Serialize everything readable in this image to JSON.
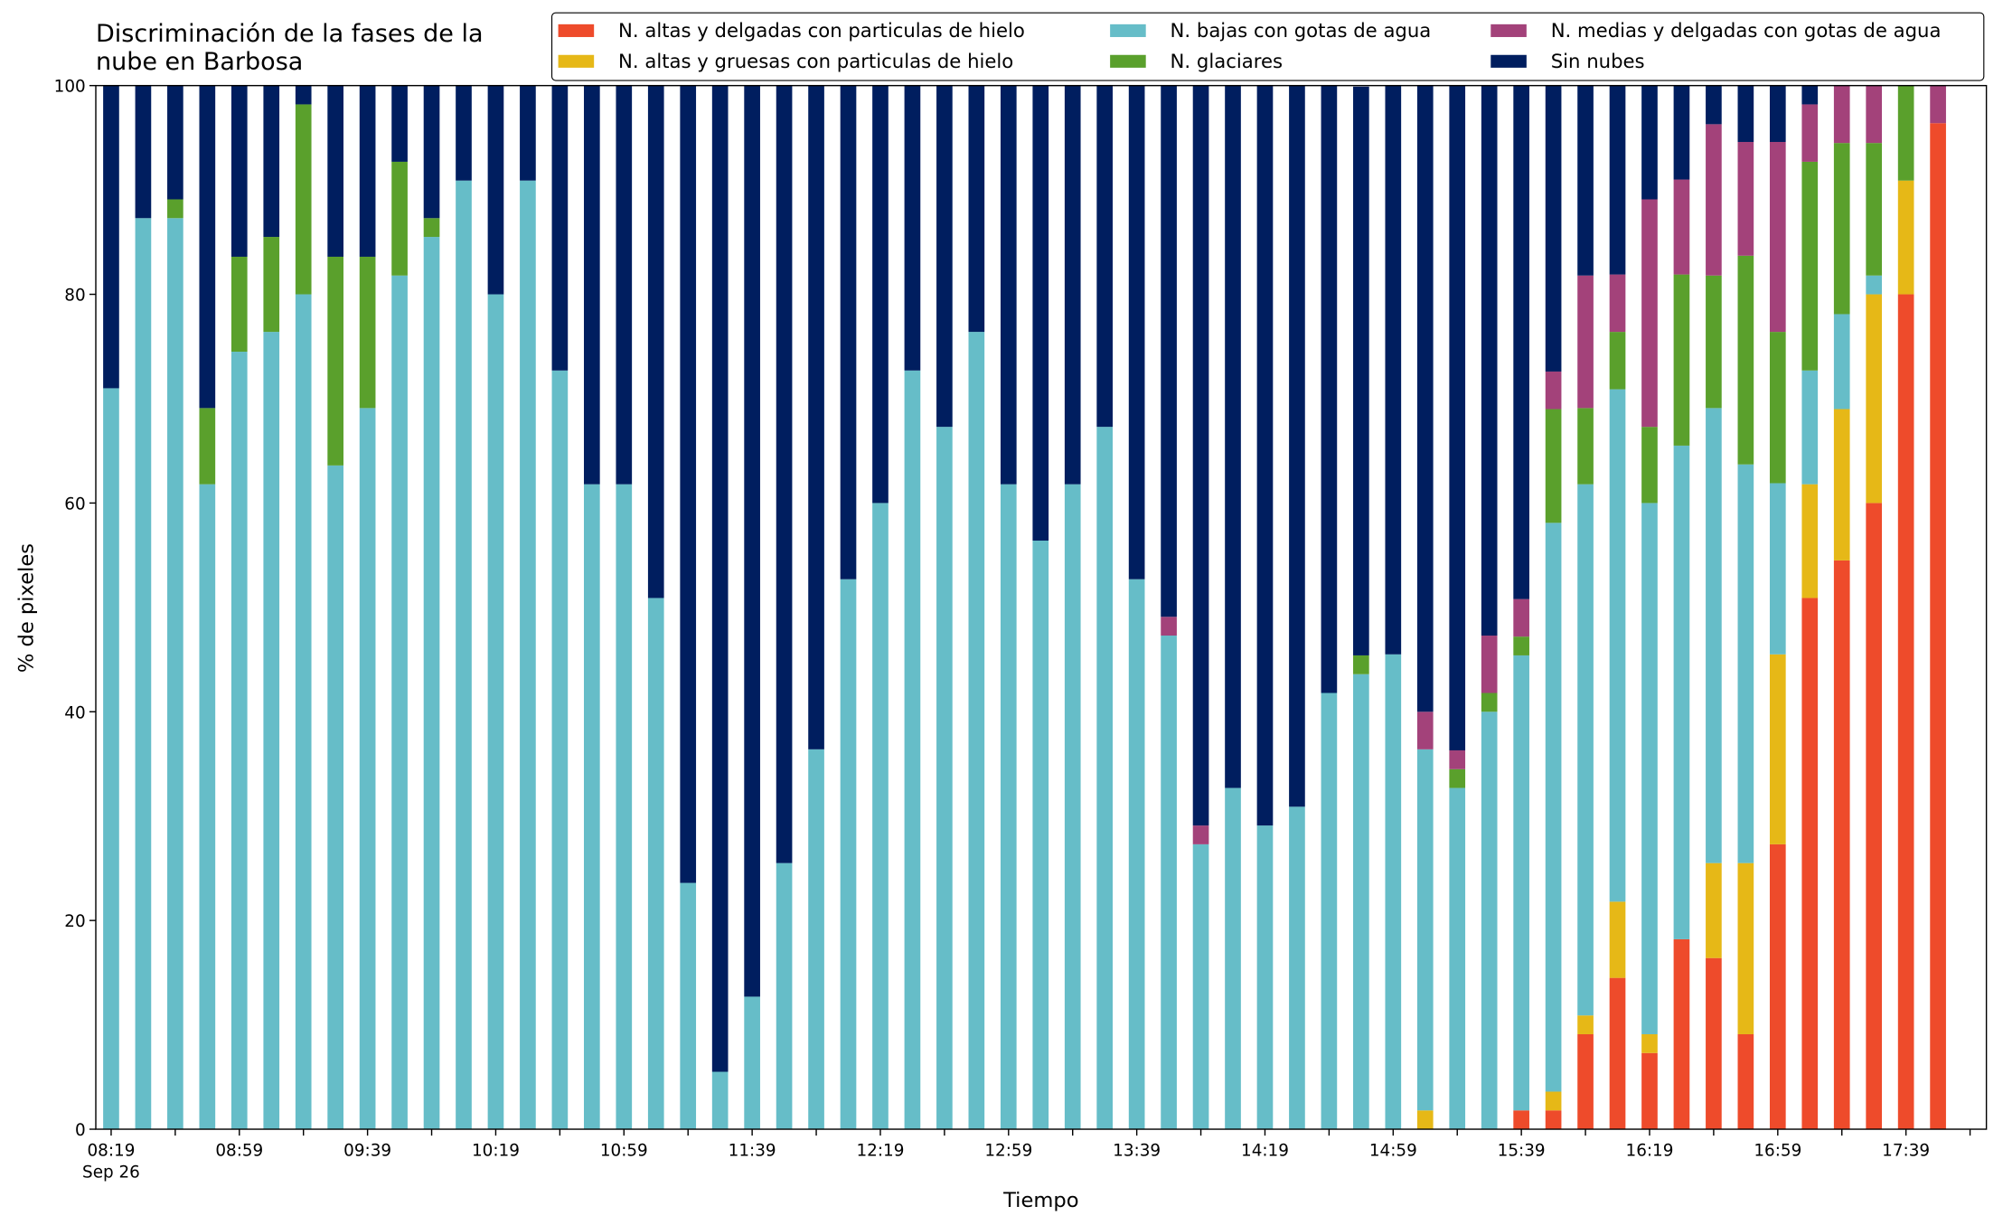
{
  "chart_data": {
    "type": "bar",
    "stacked": true,
    "title": "Discriminación de la fases de la\nnube en Barbosa",
    "xlabel": "Tiempo",
    "ylabel": "% de pixeles",
    "date_label": "Sep 26",
    "categories": [
      "08:19",
      null,
      null,
      null,
      "08:59",
      null,
      null,
      null,
      "09:39",
      null,
      null,
      null,
      "10:19",
      null,
      null,
      null,
      "10:59",
      null,
      null,
      null,
      "11:39",
      null,
      null,
      null,
      "12:19",
      null,
      null,
      null,
      "12:59",
      null,
      null,
      null,
      "13:39",
      null,
      null,
      null,
      "14:19",
      null,
      null,
      null,
      "14:59",
      null,
      null,
      null,
      "15:39",
      null,
      null,
      null,
      "16:19",
      null,
      null,
      null,
      "16:59",
      null,
      null,
      null,
      "17:39",
      null
    ],
    "ylim": [
      0,
      100
    ],
    "yticks": [
      0,
      20,
      40,
      60,
      80,
      100
    ],
    "legend": "upper right",
    "series": [
      {
        "name": "N. altas y delgadas con particulas de hielo",
        "color": "#ee4b2b",
        "values": [
          0,
          0,
          0,
          0,
          0,
          0,
          0,
          0,
          0,
          0,
          0,
          0,
          0,
          0,
          0,
          0,
          0,
          0,
          0,
          0,
          0,
          0,
          0,
          0,
          0,
          0,
          0,
          0,
          0,
          0,
          0,
          0,
          0,
          0,
          0,
          0,
          0,
          0,
          0,
          0,
          0,
          0,
          0,
          0,
          1.8,
          1.8,
          9.1,
          14.5,
          7.3,
          18.2,
          16.4,
          9.1,
          27.3,
          50.9,
          54.5,
          60,
          80,
          96.4
        ]
      },
      {
        "name": "N. altas y gruesas con particulas de hielo",
        "color": "#e6b817",
        "values": [
          0,
          0,
          0,
          0,
          0,
          0,
          0,
          0,
          0,
          0,
          0,
          0,
          0,
          0,
          0,
          0,
          0,
          0,
          0,
          0,
          0,
          0,
          0,
          0,
          0,
          0,
          0,
          0,
          0,
          0,
          0,
          0,
          0,
          0,
          0,
          0,
          0,
          0,
          0,
          0,
          0,
          1.8,
          0,
          0,
          0,
          1.8,
          1.8,
          7.3,
          1.8,
          0,
          9.1,
          16.4,
          18.2,
          10.9,
          14.5,
          20,
          10.9,
          0
        ]
      },
      {
        "name": "N. bajas con gotas de agua",
        "color": "#66bdc8",
        "values": [
          71,
          87.3,
          87.3,
          61.8,
          74.5,
          76.4,
          80,
          63.6,
          69.1,
          81.8,
          85.5,
          90.9,
          80,
          90.9,
          72.7,
          61.8,
          61.8,
          50.9,
          23.6,
          5.5,
          12.7,
          25.5,
          36.4,
          52.7,
          60,
          72.7,
          67.3,
          76.4,
          61.8,
          56.4,
          61.8,
          67.3,
          52.7,
          47.3,
          27.3,
          32.7,
          29.1,
          30.9,
          41.8,
          43.6,
          45.5,
          34.6,
          32.7,
          40,
          43.6,
          54.5,
          50.9,
          49.1,
          50.9,
          47.3,
          43.6,
          38.2,
          16.4,
          10.9,
          9.1,
          1.8,
          0,
          0
        ]
      },
      {
        "name": "N. glaciares",
        "color": "#5aa02c",
        "values": [
          0,
          0,
          1.8,
          7.3,
          9.1,
          9.1,
          18.2,
          20,
          14.5,
          10.9,
          1.8,
          0,
          0,
          0,
          0,
          0,
          0,
          0,
          0,
          0,
          0,
          0,
          0,
          0,
          0,
          0,
          0,
          0,
          0,
          0,
          0,
          0,
          0,
          0,
          0,
          0,
          0,
          0,
          0,
          1.8,
          0,
          0,
          1.8,
          1.8,
          1.8,
          10.9,
          7.3,
          5.5,
          7.3,
          16.4,
          12.7,
          20,
          14.5,
          20,
          16.4,
          12.7,
          9.1,
          0
        ]
      },
      {
        "name": "N. medias y delgadas con gotas de agua",
        "color": "#a3427a",
        "values": [
          0,
          0,
          0,
          0,
          0,
          0,
          0,
          0,
          0,
          0,
          0,
          0,
          0,
          0,
          0,
          0,
          0,
          0,
          0,
          0,
          0,
          0,
          0,
          0,
          0,
          0,
          0,
          0,
          0,
          0,
          0,
          0,
          0,
          1.8,
          1.8,
          0,
          0,
          0,
          0,
          0,
          0,
          3.6,
          1.8,
          5.5,
          3.6,
          3.6,
          12.7,
          5.5,
          21.8,
          9.1,
          14.5,
          10.9,
          18.2,
          5.5,
          5.5,
          5.5,
          0,
          3.6
        ]
      },
      {
        "name": "Sin nubes",
        "color": "#001e5f",
        "values": [
          29,
          12.7,
          10.9,
          30.9,
          16.4,
          14.5,
          1.8,
          16.4,
          16.4,
          7.3,
          12.7,
          9.1,
          20,
          9.1,
          27.3,
          38.2,
          38.2,
          49.1,
          76.4,
          94.5,
          87.3,
          74.5,
          63.6,
          47.3,
          40,
          27.3,
          32.7,
          23.6,
          38.2,
          43.6,
          38.2,
          32.7,
          47.3,
          50.9,
          70.9,
          67.3,
          70.9,
          69.1,
          58.2,
          54.5,
          54.5,
          60,
          63.7,
          52.7,
          49.2,
          27.4,
          18.2,
          18.1,
          10.9,
          9,
          3.7,
          5.4,
          5.4,
          1.8,
          0,
          0,
          0,
          0
        ]
      }
    ]
  }
}
